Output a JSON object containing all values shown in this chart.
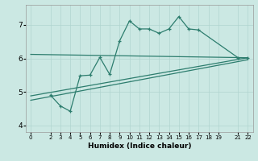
{
  "xlabel": "Humidex (Indice chaleur)",
  "background_color": "#cbe8e3",
  "grid_color": "#b0d5cf",
  "line_color": "#2d7d6e",
  "ylim": [
    3.8,
    7.6
  ],
  "xlim": [
    -0.5,
    22.5
  ],
  "yticks": [
    4,
    5,
    6,
    7
  ],
  "xticks": [
    0,
    2,
    3,
    4,
    5,
    6,
    7,
    8,
    9,
    10,
    11,
    12,
    13,
    14,
    15,
    16,
    17,
    18,
    19,
    21,
    22
  ],
  "line1_x": [
    0,
    22
  ],
  "line1_y": [
    6.12,
    6.02
  ],
  "line2_x": [
    0,
    22
  ],
  "line2_y": [
    4.88,
    6.02
  ],
  "line3_x": [
    0,
    22
  ],
  "line3_y": [
    4.75,
    5.96
  ],
  "main_x": [
    2,
    3,
    4,
    5,
    6,
    7,
    8,
    9,
    10,
    11,
    12,
    13,
    14,
    15,
    16,
    17,
    21,
    22
  ],
  "main_y": [
    4.9,
    4.58,
    4.42,
    5.48,
    5.5,
    6.03,
    5.52,
    6.52,
    7.12,
    6.88,
    6.88,
    6.75,
    6.88,
    7.25,
    6.88,
    6.85,
    6.02,
    6.02
  ]
}
